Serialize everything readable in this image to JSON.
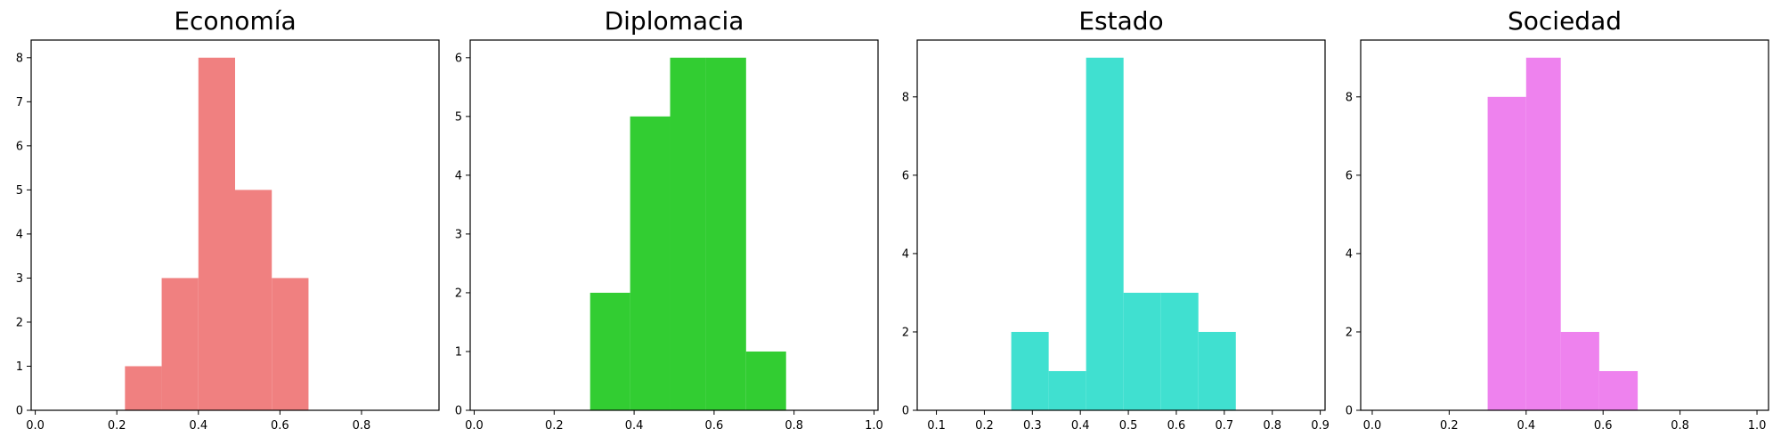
{
  "chart_data": [
    {
      "type": "bar",
      "title": "Economía",
      "color": "#f08080",
      "xlim": [
        -0.01,
        0.99
      ],
      "ylim": [
        0,
        8.4
      ],
      "xticks": [
        0.0,
        0.2,
        0.4,
        0.6,
        0.8
      ],
      "xtick_labels": [
        "0.0",
        "0.2",
        "0.4",
        "0.6",
        "0.8"
      ],
      "yticks": [
        0,
        1,
        2,
        3,
        4,
        5,
        6,
        7,
        8
      ],
      "ytick_labels": [
        "0",
        "1",
        "2",
        "3",
        "4",
        "5",
        "6",
        "7",
        "8"
      ],
      "bins": [
        {
          "x0": 0.22,
          "x1": 0.31,
          "count": 1
        },
        {
          "x0": 0.31,
          "x1": 0.4,
          "count": 3
        },
        {
          "x0": 0.4,
          "x1": 0.49,
          "count": 8
        },
        {
          "x0": 0.49,
          "x1": 0.58,
          "count": 5
        },
        {
          "x0": 0.58,
          "x1": 0.67,
          "count": 3
        }
      ]
    },
    {
      "type": "bar",
      "title": "Diplomacia",
      "color": "#32cd32",
      "xlim": [
        -0.01,
        1.01
      ],
      "ylim": [
        0,
        6.3
      ],
      "xticks": [
        0.0,
        0.2,
        0.4,
        0.6,
        0.8,
        1.0
      ],
      "xtick_labels": [
        "0.0",
        "0.2",
        "0.4",
        "0.6",
        "0.8",
        "1.0"
      ],
      "yticks": [
        0,
        1,
        2,
        3,
        4,
        5,
        6
      ],
      "ytick_labels": [
        "0",
        "1",
        "2",
        "3",
        "4",
        "5",
        "6"
      ],
      "bins": [
        {
          "x0": 0.29,
          "x1": 0.39,
          "count": 2
        },
        {
          "x0": 0.39,
          "x1": 0.49,
          "count": 5
        },
        {
          "x0": 0.49,
          "x1": 0.58,
          "count": 6
        },
        {
          "x0": 0.58,
          "x1": 0.68,
          "count": 6
        },
        {
          "x0": 0.68,
          "x1": 0.78,
          "count": 1
        }
      ]
    },
    {
      "type": "bar",
      "title": "Estado",
      "color": "#40e0d0",
      "xlim": [
        0.06,
        0.91
      ],
      "ylim": [
        0,
        9.45
      ],
      "xticks": [
        0.1,
        0.2,
        0.3,
        0.4,
        0.5,
        0.6,
        0.7,
        0.8,
        0.9
      ],
      "xtick_labels": [
        "0.1",
        "0.2",
        "0.3",
        "0.4",
        "0.5",
        "0.6",
        "0.7",
        "0.8",
        "0.9"
      ],
      "yticks": [
        0,
        2,
        4,
        6,
        8
      ],
      "ytick_labels": [
        "0",
        "2",
        "4",
        "6",
        "8"
      ],
      "bins": [
        {
          "x0": 0.256,
          "x1": 0.334,
          "count": 2
        },
        {
          "x0": 0.334,
          "x1": 0.412,
          "count": 1
        },
        {
          "x0": 0.412,
          "x1": 0.49,
          "count": 9
        },
        {
          "x0": 0.49,
          "x1": 0.568,
          "count": 3
        },
        {
          "x0": 0.568,
          "x1": 0.646,
          "count": 3
        },
        {
          "x0": 0.646,
          "x1": 0.724,
          "count": 2
        }
      ]
    },
    {
      "type": "bar",
      "title": "Sociedad",
      "color": "#ee82ee",
      "xlim": [
        -0.03,
        1.03
      ],
      "ylim": [
        0,
        9.45
      ],
      "xticks": [
        0.0,
        0.2,
        0.4,
        0.6,
        0.8,
        1.0
      ],
      "xtick_labels": [
        "0.0",
        "0.2",
        "0.4",
        "0.6",
        "0.8",
        "1.0"
      ],
      "yticks": [
        0,
        2,
        4,
        6,
        8
      ],
      "ytick_labels": [
        "0",
        "2",
        "4",
        "6",
        "8"
      ],
      "bins": [
        {
          "x0": 0.3,
          "x1": 0.4,
          "count": 8
        },
        {
          "x0": 0.4,
          "x1": 0.49,
          "count": 9
        },
        {
          "x0": 0.49,
          "x1": 0.59,
          "count": 2
        },
        {
          "x0": 0.59,
          "x1": 0.69,
          "count": 1
        }
      ]
    }
  ]
}
